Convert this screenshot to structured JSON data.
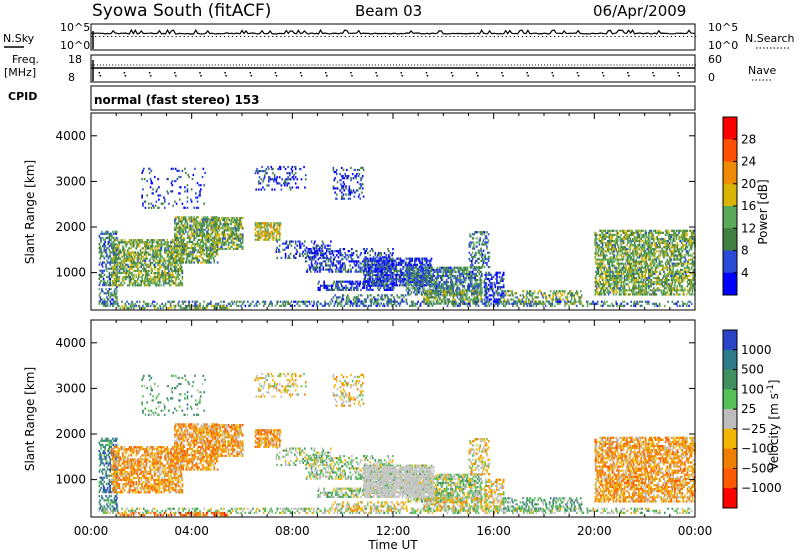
{
  "header": {
    "title": "Syowa South (fitACF)",
    "beam": "Beam 03",
    "date": "06/Apr/2009"
  },
  "nsky_panel": {
    "left_label": "N.Sky",
    "right_label": "N.Search",
    "left_ticks": [
      "10^5",
      "10^0"
    ],
    "right_ticks": [
      "10^5",
      "10^0"
    ]
  },
  "freq_panel": {
    "left_label_1": "Freq.",
    "left_label_2": "[MHz]",
    "right_label": "Nave",
    "left_ticks": [
      "18",
      "8"
    ],
    "right_ticks": [
      "60",
      "0"
    ]
  },
  "cpid": {
    "label": "CPID",
    "value": "normal (fast stereo) 153"
  },
  "chart_data": [
    {
      "type": "heatmap",
      "name": "power",
      "ylabel": "Slant Range [km]",
      "y_ticks": [
        "1000",
        "2000",
        "3000",
        "4000"
      ],
      "ylim": [
        180,
        4500
      ],
      "colorbar_label": "Power [dB]",
      "colorbar_ticks": [
        "4",
        "8",
        "12",
        "16",
        "20",
        "24",
        "28"
      ],
      "colorbar_colors": [
        "#0000ff",
        "#2a4bd7",
        "#3f7f3f",
        "#5aa85a",
        "#d9b400",
        "#f08a00",
        "#ff5000",
        "#ff0000"
      ]
    },
    {
      "type": "heatmap",
      "name": "velocity",
      "ylabel": "Slant Range [km]",
      "y_ticks": [
        "1000",
        "2000",
        "3000",
        "4000"
      ],
      "ylim": [
        180,
        4500
      ],
      "colorbar_label": "Velocity [m s^-1]",
      "colorbar_ticks": [
        "1000",
        "500",
        "100",
        "25",
        "−25",
        "−100",
        "−500",
        "−1000"
      ],
      "colorbar_colors": [
        "#2a44c8",
        "#2f7a8a",
        "#3f8f5f",
        "#55c055",
        "#bdbdbd",
        "#f2b600",
        "#f07f00",
        "#ff5a00",
        "#ff0000"
      ]
    }
  ],
  "x_axis": {
    "label": "Time UT",
    "ticks": [
      "00:00",
      "04:00",
      "08:00",
      "12:00",
      "16:00",
      "20:00",
      "00:00"
    ]
  }
}
